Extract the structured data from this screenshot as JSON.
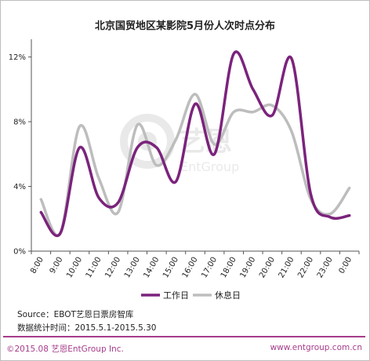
{
  "colors": {
    "workday": "#7b237c",
    "holiday": "#bdbdbd",
    "accent": "#a63d8b",
    "axis": "#555555"
  },
  "chart_data": {
    "type": "line",
    "title": "北京国贸地区某影院5月份人次时点分布",
    "x": [
      "8:00",
      "9:00",
      "10:00",
      "11:00",
      "12:00",
      "13:00",
      "14:00",
      "15:00",
      "16:00",
      "17:00",
      "18:00",
      "19:00",
      "20:00",
      "21:00",
      "22:00",
      "23:00",
      "0:00"
    ],
    "series": [
      {
        "name": "工作日",
        "color": "#7b237c",
        "values": [
          2.4,
          1.1,
          6.4,
          3.3,
          3.0,
          6.4,
          6.4,
          4.3,
          9.1,
          6.0,
          12.2,
          10.0,
          8.4,
          11.9,
          3.5,
          2.1,
          2.2
        ]
      },
      {
        "name": "休息日",
        "color": "#bdbdbd",
        "values": [
          3.2,
          1.1,
          7.7,
          4.5,
          2.4,
          7.8,
          5.3,
          6.9,
          9.7,
          6.6,
          8.6,
          8.6,
          9.0,
          7.4,
          3.2,
          2.3,
          3.9
        ]
      }
    ],
    "yticks": [
      "0%",
      "4%",
      "8%",
      "12%"
    ],
    "ylim": [
      0,
      13
    ],
    "xlabel": "",
    "ylabel": "",
    "grid": false,
    "legend": "bottom"
  },
  "source_line": "Source：EBOT艺恩日票房智库",
  "period_line": "数据统计时间：2015.5.1-2015.5.30",
  "footer": {
    "left": "©2015.08  艺恩EntGroup Inc.",
    "right": "www.entgroup.com.cn"
  },
  "watermark": {
    "logo_text": "艺恩",
    "sub_text": "EntGroup"
  }
}
